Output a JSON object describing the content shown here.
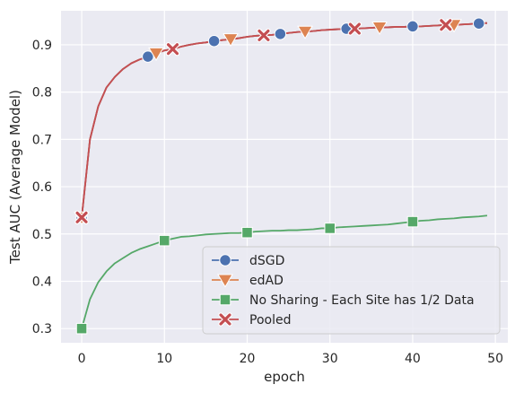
{
  "chart_data": {
    "type": "line",
    "title": "",
    "xlabel": "epoch",
    "ylabel": "Test AUC (Average Model)",
    "xlim": [
      -2.5,
      51.5
    ],
    "ylim": [
      0.27,
      0.972
    ],
    "xticks": [
      0,
      10,
      20,
      30,
      40,
      50
    ],
    "xtick_labels": [
      "0",
      "10",
      "20",
      "30",
      "40",
      "50"
    ],
    "yticks": [
      0.3,
      0.4,
      0.5,
      0.6,
      0.7,
      0.8,
      0.9
    ],
    "ytick_labels": [
      "0.3",
      "0.4",
      "0.5",
      "0.6",
      "0.7",
      "0.8",
      "0.9"
    ],
    "grid": true,
    "legend_position": "bottom-right",
    "series": [
      {
        "name": "dSGD",
        "color": "#4c72b0",
        "marker": "circle",
        "marker_every": 8,
        "x": [
          0,
          1,
          2,
          3,
          4,
          5,
          6,
          7,
          8,
          9,
          10,
          11,
          12,
          13,
          14,
          15,
          16,
          17,
          18,
          19,
          20,
          21,
          22,
          23,
          24,
          25,
          26,
          27,
          28,
          29,
          30,
          31,
          32,
          33,
          34,
          35,
          36,
          37,
          38,
          39,
          40,
          41,
          42,
          43,
          44,
          45,
          46,
          47,
          48,
          49
        ],
        "values": [
          0.535,
          0.7,
          0.77,
          0.81,
          0.832,
          0.849,
          0.861,
          0.869,
          0.875,
          0.882,
          0.888,
          0.891,
          0.896,
          0.9,
          0.903,
          0.905,
          0.908,
          0.91,
          0.912,
          0.914,
          0.917,
          0.919,
          0.92,
          0.921,
          0.923,
          0.925,
          0.927,
          0.928,
          0.929,
          0.931,
          0.932,
          0.933,
          0.934,
          0.934,
          0.935,
          0.936,
          0.937,
          0.937,
          0.938,
          0.938,
          0.939,
          0.939,
          0.94,
          0.941,
          0.942,
          0.942,
          0.943,
          0.944,
          0.945,
          0.946
        ]
      },
      {
        "name": "edAD",
        "color": "#dd8452",
        "marker": "triangle-down",
        "marker_every": 9,
        "x": [
          0,
          1,
          2,
          3,
          4,
          5,
          6,
          7,
          8,
          9,
          10,
          11,
          12,
          13,
          14,
          15,
          16,
          17,
          18,
          19,
          20,
          21,
          22,
          23,
          24,
          25,
          26,
          27,
          28,
          29,
          30,
          31,
          32,
          33,
          34,
          35,
          36,
          37,
          38,
          39,
          40,
          41,
          42,
          43,
          44,
          45,
          46,
          47,
          48,
          49
        ],
        "values": [
          0.535,
          0.7,
          0.77,
          0.81,
          0.832,
          0.849,
          0.861,
          0.869,
          0.875,
          0.882,
          0.888,
          0.891,
          0.896,
          0.9,
          0.903,
          0.905,
          0.908,
          0.91,
          0.912,
          0.914,
          0.917,
          0.919,
          0.92,
          0.921,
          0.923,
          0.925,
          0.927,
          0.928,
          0.929,
          0.931,
          0.932,
          0.933,
          0.934,
          0.934,
          0.935,
          0.936,
          0.937,
          0.937,
          0.938,
          0.938,
          0.939,
          0.939,
          0.94,
          0.941,
          0.942,
          0.942,
          0.943,
          0.944,
          0.945,
          0.946
        ]
      },
      {
        "name": "No Sharing - Each Site has 1/2 Data",
        "color": "#55a868",
        "marker": "square",
        "marker_every": 10,
        "x": [
          0,
          1,
          2,
          3,
          4,
          5,
          6,
          7,
          8,
          9,
          10,
          11,
          12,
          13,
          14,
          15,
          16,
          17,
          18,
          19,
          20,
          21,
          22,
          23,
          24,
          25,
          26,
          27,
          28,
          29,
          30,
          31,
          32,
          33,
          34,
          35,
          36,
          37,
          38,
          39,
          40,
          41,
          42,
          43,
          44,
          45,
          46,
          47,
          48,
          49
        ],
        "values": [
          0.3,
          0.362,
          0.398,
          0.421,
          0.438,
          0.449,
          0.46,
          0.468,
          0.474,
          0.48,
          0.486,
          0.49,
          0.494,
          0.495,
          0.497,
          0.499,
          0.5,
          0.501,
          0.502,
          0.502,
          0.503,
          0.505,
          0.506,
          0.507,
          0.507,
          0.508,
          0.508,
          0.509,
          0.51,
          0.512,
          0.512,
          0.514,
          0.515,
          0.516,
          0.517,
          0.518,
          0.519,
          0.52,
          0.522,
          0.524,
          0.526,
          0.528,
          0.529,
          0.531,
          0.532,
          0.533,
          0.535,
          0.536,
          0.537,
          0.539
        ]
      },
      {
        "name": "Pooled",
        "color": "#c44e52",
        "marker": "x",
        "marker_every": 11,
        "x": [
          0,
          1,
          2,
          3,
          4,
          5,
          6,
          7,
          8,
          9,
          10,
          11,
          12,
          13,
          14,
          15,
          16,
          17,
          18,
          19,
          20,
          21,
          22,
          23,
          24,
          25,
          26,
          27,
          28,
          29,
          30,
          31,
          32,
          33,
          34,
          35,
          36,
          37,
          38,
          39,
          40,
          41,
          42,
          43,
          44,
          45,
          46,
          47,
          48,
          49
        ],
        "values": [
          0.535,
          0.7,
          0.77,
          0.81,
          0.832,
          0.849,
          0.861,
          0.869,
          0.875,
          0.882,
          0.888,
          0.891,
          0.896,
          0.9,
          0.903,
          0.905,
          0.908,
          0.91,
          0.912,
          0.914,
          0.917,
          0.919,
          0.92,
          0.921,
          0.923,
          0.925,
          0.927,
          0.928,
          0.929,
          0.931,
          0.932,
          0.933,
          0.934,
          0.934,
          0.935,
          0.936,
          0.937,
          0.937,
          0.938,
          0.938,
          0.939,
          0.939,
          0.94,
          0.941,
          0.942,
          0.942,
          0.943,
          0.944,
          0.945,
          0.946
        ]
      }
    ]
  }
}
